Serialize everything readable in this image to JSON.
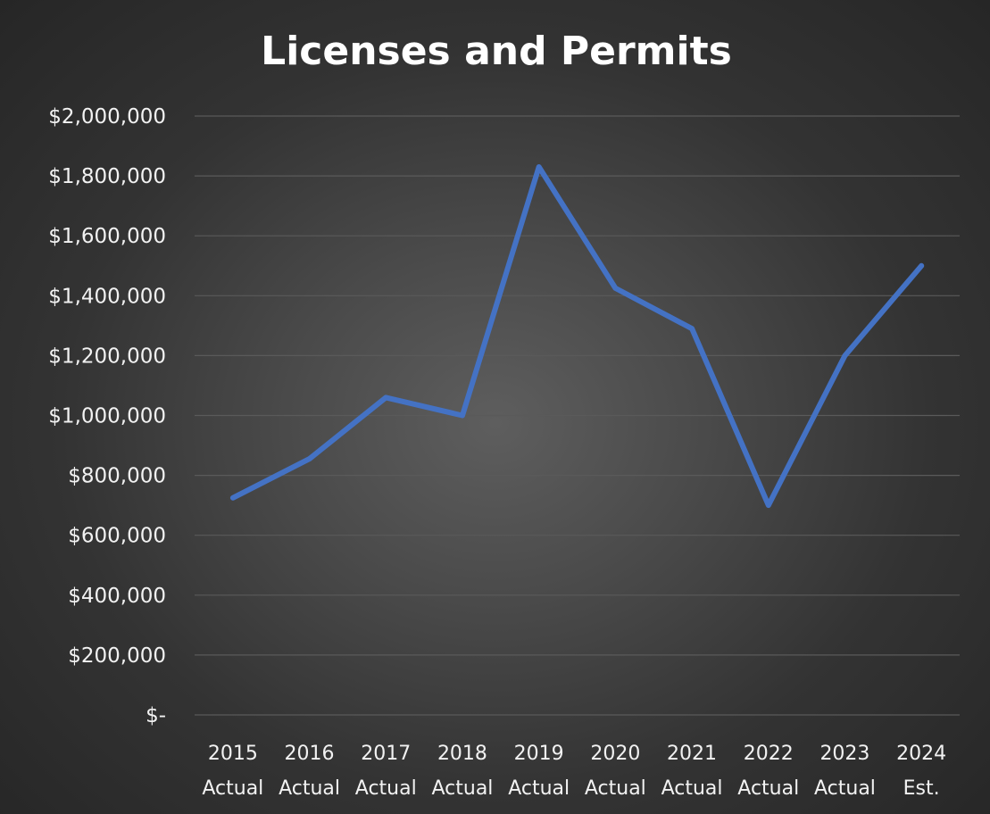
{
  "chart_data": {
    "type": "line",
    "title": "Licenses and Permits",
    "xlabel": "",
    "ylabel": "",
    "categories": [
      [
        "2015",
        "Actual"
      ],
      [
        "2016",
        "Actual"
      ],
      [
        "2017",
        "Actual"
      ],
      [
        "2018",
        "Actual"
      ],
      [
        "2019",
        "Actual"
      ],
      [
        "2020",
        "Actual"
      ],
      [
        "2021",
        "Actual"
      ],
      [
        "2022",
        "Actual"
      ],
      [
        "2023",
        "Actual"
      ],
      [
        "2024",
        "Est."
      ]
    ],
    "series": [
      {
        "color": "#4472c4",
        "values": [
          725000,
          855000,
          1060000,
          1000000,
          1830000,
          1425000,
          1290000,
          700000,
          1200000,
          1500000
        ]
      }
    ],
    "ylim": [
      0,
      2000000
    ],
    "yticks": [
      0,
      200000,
      400000,
      600000,
      800000,
      1000000,
      1200000,
      1400000,
      1600000,
      1800000,
      2000000
    ],
    "ytick_labels": [
      "$-",
      "$200,000",
      "$400,000",
      "$600,000",
      "$800,000",
      "$1,000,000",
      "$1,200,000",
      "$1,400,000",
      "$1,600,000",
      "$1,800,000",
      "$2,000,000"
    ],
    "grid": true,
    "legend": "none"
  }
}
